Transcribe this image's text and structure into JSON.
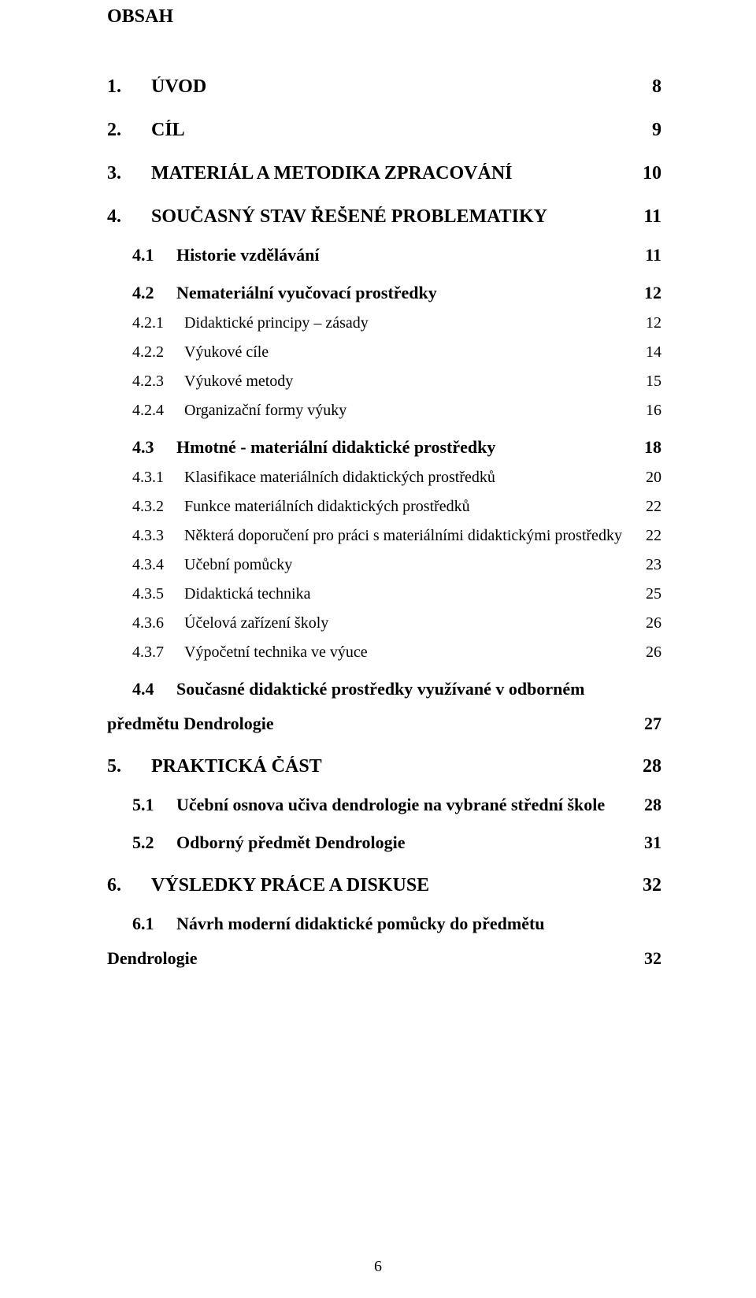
{
  "title": "OBSAH",
  "page_number": "6",
  "entries": [
    {
      "level": 1,
      "num": "1.",
      "text": "ÚVOD",
      "page": "8"
    },
    {
      "level": 1,
      "num": "2.",
      "text": "CÍL",
      "page": "9"
    },
    {
      "level": 1,
      "num": "3.",
      "text": "MATERIÁL A METODIKA ZPRACOVÁNÍ",
      "page": "10"
    },
    {
      "level": 1,
      "num": "4.",
      "text": "SOUČASNÝ STAV ŘEŠENÉ PROBLEMATIKY",
      "page": "11"
    },
    {
      "level": 2,
      "num": "4.1",
      "text": "Historie vzdělávání",
      "page": "11"
    },
    {
      "level": 2,
      "num": "4.2",
      "text": "Nemateriální vyučovací prostředky",
      "page": "12"
    },
    {
      "level": 3,
      "num": "4.2.1",
      "text": "Didaktické principy – zásady",
      "page": "12"
    },
    {
      "level": 3,
      "num": "4.2.2",
      "text": "Výukové cíle",
      "page": "14"
    },
    {
      "level": 3,
      "num": "4.2.3",
      "text": "Výukové metody",
      "page": "15"
    },
    {
      "level": 3,
      "num": "4.2.4",
      "text": "Organizační formy výuky",
      "page": "16"
    },
    {
      "level": 2,
      "num": "4.3",
      "text": "Hmotné - materiální didaktické prostředky",
      "page": "18"
    },
    {
      "level": 3,
      "num": "4.3.1",
      "text": "Klasifikace materiálních didaktických prostředků",
      "page": "20"
    },
    {
      "level": 3,
      "num": "4.3.2",
      "text": "Funkce materiálních didaktických prostředků",
      "page": "22"
    },
    {
      "level": 3,
      "num": "4.3.3",
      "text": "Některá doporučení pro práci s materiálními didaktickými prostředky",
      "page": "22"
    },
    {
      "level": 3,
      "num": "4.3.4",
      "text": "Učební pomůcky",
      "page": "23"
    },
    {
      "level": 3,
      "num": "4.3.5",
      "text": "Didaktická technika",
      "page": "25"
    },
    {
      "level": 3,
      "num": "4.3.6",
      "text": "Účelová zařízení školy",
      "page": "26"
    },
    {
      "level": 3,
      "num": "4.3.7",
      "text": "Výpočetní technika ve výuce",
      "page": "26"
    },
    {
      "level": 2,
      "num": "4.4",
      "text": "Současné didaktické prostředky využívané v odborném",
      "text2": "předmětu Dendrologie",
      "page": "27",
      "multiline": true
    },
    {
      "level": 1,
      "num": "5.",
      "text": "PRAKTICKÁ ČÁST",
      "page": "28"
    },
    {
      "level": 2,
      "num": "5.1",
      "text": "Učební osnova učiva dendrologie na vybrané střední škole",
      "page": "28"
    },
    {
      "level": 2,
      "num": "5.2",
      "text": "Odborný předmět Dendrologie",
      "page": "31"
    },
    {
      "level": 1,
      "num": "6.",
      "text": "VÝSLEDKY PRÁCE A DISKUSE",
      "page": "32"
    },
    {
      "level": 2,
      "num": "6.1",
      "text": "Návrh moderní didaktické pomůcky do předmětu",
      "text2": "Dendrologie",
      "page": "32",
      "multiline": true
    }
  ]
}
